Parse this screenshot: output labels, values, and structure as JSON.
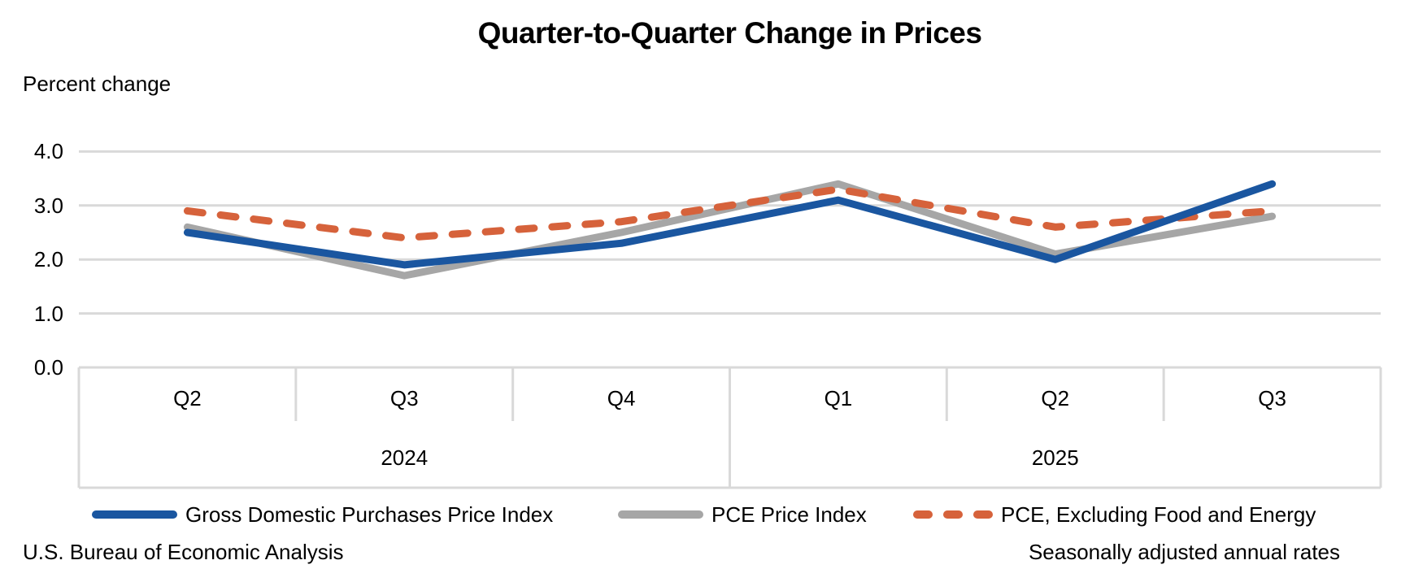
{
  "header": {
    "title": "Quarter-to-Quarter Change in Prices"
  },
  "chart_data": {
    "type": "line",
    "title": "Quarter-to-Quarter Change in Prices",
    "ylabel": "Percent change",
    "ylim": [
      0.0,
      4.0
    ],
    "yticks": [
      4.0,
      3.0,
      2.0,
      1.0,
      0.0
    ],
    "ytick_labels": [
      "4.0",
      "3.0",
      "2.0",
      "1.0",
      "0.0"
    ],
    "grid": true,
    "legend_position": "bottom",
    "categories": [
      "Q2 2024",
      "Q3 2024",
      "Q4 2024",
      "Q1 2025",
      "Q2 2025",
      "Q3 2025"
    ],
    "x_quarter_labels": [
      "Q2",
      "Q3",
      "Q4",
      "Q1",
      "Q2",
      "Q3"
    ],
    "x_year_groups": [
      {
        "label": "2024",
        "span": 3
      },
      {
        "label": "2025",
        "span": 3
      }
    ],
    "series": [
      {
        "name": "Gross Domestic Purchases Price Index",
        "color": "#1A56A0",
        "line_style": "solid",
        "values": [
          2.5,
          1.9,
          2.3,
          3.1,
          2.0,
          3.4
        ]
      },
      {
        "name": "PCE Price Index",
        "color": "#A6A6A6",
        "line_style": "solid",
        "values": [
          2.6,
          1.7,
          2.5,
          3.4,
          2.1,
          2.8
        ]
      },
      {
        "name": "PCE, Excluding Food and Energy",
        "color": "#D6623B",
        "line_style": "dashed",
        "values": [
          2.9,
          2.4,
          2.7,
          3.3,
          2.6,
          2.9
        ]
      }
    ],
    "gridline_color": "#D9D9D9"
  },
  "footer": {
    "source": "U.S. Bureau of Economic Analysis",
    "note": "Seasonally adjusted annual rates"
  }
}
